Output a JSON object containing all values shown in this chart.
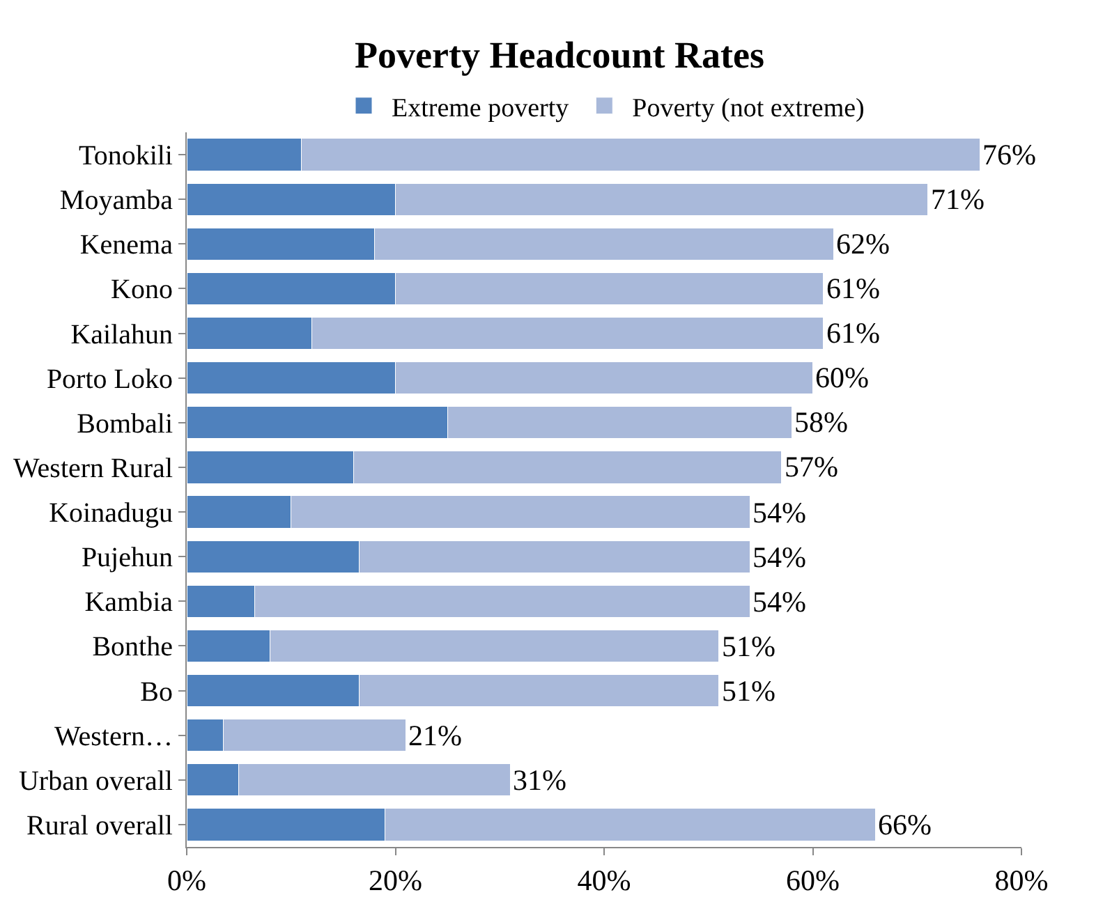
{
  "chart_data": {
    "type": "bar",
    "orientation": "horizontal",
    "stacked": true,
    "title": "Poverty Headcount Rates",
    "categories": [
      "Tonokili",
      "Moyamba",
      "Kenema",
      "Kono",
      "Kailahun",
      "Porto Loko",
      "Bombali",
      "Western Rural",
      "Koinadugu",
      "Pujehun",
      "Kambia",
      "Bonthe",
      "Bo",
      "Western…",
      "Urban overall",
      "Rural overall"
    ],
    "series": [
      {
        "name": "Extreme poverty",
        "color": "#4f81bd",
        "values": [
          11,
          20,
          18,
          20,
          12,
          20,
          25,
          16,
          10,
          16.5,
          6.5,
          8,
          16.5,
          3.5,
          5,
          19
        ]
      },
      {
        "name": "Poverty (not extreme)",
        "color": "#a9b9da",
        "values": [
          65,
          51,
          44,
          41,
          49,
          40,
          33,
          41,
          44,
          37.5,
          47.5,
          43,
          34.5,
          17.5,
          26,
          47
        ]
      }
    ],
    "totals": [
      "76%",
      "71%",
      "62%",
      "61%",
      "61%",
      "60%",
      "58%",
      "57%",
      "54%",
      "54%",
      "54%",
      "51%",
      "51%",
      "21%",
      "31%",
      "66%"
    ],
    "xlim": [
      0,
      80
    ],
    "xticks": [
      {
        "value": 0,
        "label": "0%"
      },
      {
        "value": 20,
        "label": "20%"
      },
      {
        "value": 40,
        "label": "40%"
      },
      {
        "value": 60,
        "label": "60%"
      },
      {
        "value": 80,
        "label": "80%"
      }
    ],
    "legend": "top"
  }
}
